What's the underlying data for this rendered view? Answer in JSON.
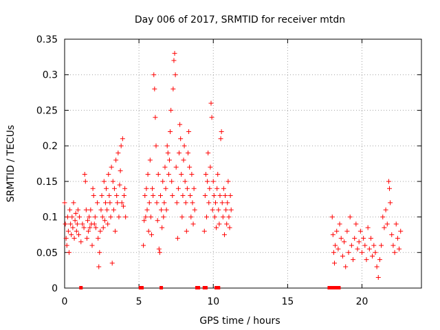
{
  "chart_data": {
    "type": "scatter",
    "title": "Day 006 of 2017, SRMTID for receiver mtdn",
    "xlabel": "GPS time / hours",
    "ylabel": "SRMTID / TECUs",
    "xlim": [
      0,
      24
    ],
    "ylim": [
      0,
      0.35
    ],
    "xticks": [
      0,
      5,
      10,
      15,
      20
    ],
    "xtick_labels": [
      "0",
      "5",
      "10",
      "15",
      "20"
    ],
    "yticks": [
      0,
      0.05,
      0.1,
      0.15,
      0.2,
      0.25,
      0.3,
      0.35
    ],
    "ytick_labels": [
      "0",
      "0.05",
      "0.1",
      "0.15",
      "0.2",
      "0.25",
      "0.3",
      "0.35"
    ],
    "grid": true,
    "marker": "+",
    "series_color": "#ff0000",
    "series": [
      {
        "name": "SRMTID",
        "points": [
          [
            0.0,
            0.12
          ],
          [
            0.05,
            0.09
          ],
          [
            0.1,
            0.07
          ],
          [
            0.15,
            0.06
          ],
          [
            0.2,
            0.1
          ],
          [
            0.25,
            0.08
          ],
          [
            0.3,
            0.05
          ],
          [
            0.35,
            0.11
          ],
          [
            0.4,
            0.09
          ],
          [
            0.45,
            0.075
          ],
          [
            0.5,
            0.1
          ],
          [
            0.55,
            0.085
          ],
          [
            0.6,
            0.12
          ],
          [
            0.65,
            0.07
          ],
          [
            0.7,
            0.095
          ],
          [
            0.75,
            0.105
          ],
          [
            0.8,
            0.08
          ],
          [
            0.85,
            0.09
          ],
          [
            0.9,
            0.11
          ],
          [
            0.95,
            0.075
          ],
          [
            1.0,
            0.1
          ],
          [
            1.1,
            0.065
          ],
          [
            1.2,
            0.09
          ],
          [
            1.3,
            0.085
          ],
          [
            1.35,
            0.16
          ],
          [
            1.4,
            0.15
          ],
          [
            1.45,
            0.11
          ],
          [
            1.5,
            0.07
          ],
          [
            1.55,
            0.095
          ],
          [
            1.6,
            0.08
          ],
          [
            1.65,
            0.1
          ],
          [
            1.7,
            0.085
          ],
          [
            1.75,
            0.11
          ],
          [
            1.8,
            0.09
          ],
          [
            1.85,
            0.06
          ],
          [
            1.9,
            0.14
          ],
          [
            1.95,
            0.13
          ],
          [
            2.0,
            0.09
          ],
          [
            2.05,
            0.1
          ],
          [
            2.1,
            0.085
          ],
          [
            2.2,
            0.12
          ],
          [
            2.25,
            0.07
          ],
          [
            2.3,
            0.03
          ],
          [
            2.35,
            0.05
          ],
          [
            2.4,
            0.08
          ],
          [
            2.45,
            0.11
          ],
          [
            2.5,
            0.13
          ],
          [
            2.55,
            0.1
          ],
          [
            2.6,
            0.085
          ],
          [
            2.65,
            0.15
          ],
          [
            2.7,
            0.095
          ],
          [
            2.75,
            0.12
          ],
          [
            2.8,
            0.14
          ],
          [
            2.85,
            0.11
          ],
          [
            2.9,
            0.09
          ],
          [
            2.95,
            0.16
          ],
          [
            3.0,
            0.13
          ],
          [
            3.05,
            0.12
          ],
          [
            3.1,
            0.1
          ],
          [
            3.15,
            0.17
          ],
          [
            3.2,
            0.035
          ],
          [
            3.25,
            0.15
          ],
          [
            3.3,
            0.11
          ],
          [
            3.35,
            0.14
          ],
          [
            3.4,
            0.08
          ],
          [
            3.45,
            0.18
          ],
          [
            3.5,
            0.13
          ],
          [
            3.55,
            0.12
          ],
          [
            3.6,
            0.19
          ],
          [
            3.65,
            0.1
          ],
          [
            3.7,
            0.145
          ],
          [
            3.75,
            0.165
          ],
          [
            3.8,
            0.2
          ],
          [
            3.85,
            0.12
          ],
          [
            3.9,
            0.21
          ],
          [
            3.95,
            0.115
          ],
          [
            4.0,
            0.13
          ],
          [
            4.05,
            0.14
          ],
          [
            4.1,
            0.1
          ],
          [
            5.3,
            0.06
          ],
          [
            5.35,
            0.095
          ],
          [
            5.4,
            0.13
          ],
          [
            5.45,
            0.1
          ],
          [
            5.5,
            0.14
          ],
          [
            5.55,
            0.11
          ],
          [
            5.6,
            0.16
          ],
          [
            5.65,
            0.08
          ],
          [
            5.7,
            0.12
          ],
          [
            5.75,
            0.18
          ],
          [
            5.8,
            0.1
          ],
          [
            5.85,
            0.075
          ],
          [
            5.9,
            0.14
          ],
          [
            5.95,
            0.13
          ],
          [
            6.0,
            0.3
          ],
          [
            6.05,
            0.28
          ],
          [
            6.1,
            0.24
          ],
          [
            6.15,
            0.2
          ],
          [
            6.2,
            0.12
          ],
          [
            6.25,
            0.095
          ],
          [
            6.3,
            0.16
          ],
          [
            6.35,
            0.055
          ],
          [
            6.4,
            0.05
          ],
          [
            6.45,
            0.13
          ],
          [
            6.5,
            0.11
          ],
          [
            6.55,
            0.085
          ],
          [
            6.6,
            0.15
          ],
          [
            6.65,
            0.1
          ],
          [
            6.7,
            0.12
          ],
          [
            6.75,
            0.17
          ],
          [
            6.8,
            0.14
          ],
          [
            6.85,
            0.11
          ],
          [
            6.9,
            0.2
          ],
          [
            6.95,
            0.19
          ],
          [
            7.0,
            0.16
          ],
          [
            7.05,
            0.18
          ],
          [
            7.1,
            0.22
          ],
          [
            7.15,
            0.25
          ],
          [
            7.2,
            0.15
          ],
          [
            7.25,
            0.13
          ],
          [
            7.3,
            0.28
          ],
          [
            7.35,
            0.32
          ],
          [
            7.4,
            0.33
          ],
          [
            7.45,
            0.3
          ],
          [
            7.5,
            0.17
          ],
          [
            7.55,
            0.12
          ],
          [
            7.6,
            0.07
          ],
          [
            7.65,
            0.14
          ],
          [
            7.7,
            0.19
          ],
          [
            7.75,
            0.23
          ],
          [
            7.8,
            0.21
          ],
          [
            7.85,
            0.16
          ],
          [
            7.9,
            0.1
          ],
          [
            7.95,
            0.13
          ],
          [
            8.0,
            0.18
          ],
          [
            8.05,
            0.2
          ],
          [
            8.1,
            0.15
          ],
          [
            8.15,
            0.12
          ],
          [
            8.2,
            0.08
          ],
          [
            8.25,
            0.14
          ],
          [
            8.3,
            0.19
          ],
          [
            8.35,
            0.22
          ],
          [
            8.4,
            0.17
          ],
          [
            8.45,
            0.13
          ],
          [
            8.5,
            0.1
          ],
          [
            8.55,
            0.16
          ],
          [
            8.6,
            0.12
          ],
          [
            8.65,
            0.09
          ],
          [
            8.7,
            0.14
          ],
          [
            8.75,
            0.11
          ],
          [
            9.4,
            0.08
          ],
          [
            9.45,
            0.13
          ],
          [
            9.5,
            0.16
          ],
          [
            9.55,
            0.1
          ],
          [
            9.6,
            0.15
          ],
          [
            9.65,
            0.19
          ],
          [
            9.7,
            0.12
          ],
          [
            9.75,
            0.14
          ],
          [
            9.8,
            0.17
          ],
          [
            9.85,
            0.26
          ],
          [
            9.9,
            0.24
          ],
          [
            9.95,
            0.11
          ],
          [
            10.0,
            0.15
          ],
          [
            10.05,
            0.13
          ],
          [
            10.1,
            0.1
          ],
          [
            10.15,
            0.12
          ],
          [
            10.2,
            0.085
          ],
          [
            10.25,
            0.14
          ],
          [
            10.3,
            0.16
          ],
          [
            10.35,
            0.11
          ],
          [
            10.4,
            0.09
          ],
          [
            10.45,
            0.13
          ],
          [
            10.5,
            0.21
          ],
          [
            10.55,
            0.22
          ],
          [
            10.6,
            0.12
          ],
          [
            10.65,
            0.1
          ],
          [
            10.7,
            0.14
          ],
          [
            10.75,
            0.075
          ],
          [
            10.8,
            0.13
          ],
          [
            10.85,
            0.11
          ],
          [
            10.9,
            0.09
          ],
          [
            10.95,
            0.12
          ],
          [
            11.0,
            0.15
          ],
          [
            11.05,
            0.1
          ],
          [
            11.1,
            0.085
          ],
          [
            11.15,
            0.13
          ],
          [
            11.2,
            0.11
          ],
          [
            18.0,
            0.1
          ],
          [
            18.05,
            0.075
          ],
          [
            18.1,
            0.05
          ],
          [
            18.15,
            0.035
          ],
          [
            18.2,
            0.06
          ],
          [
            18.3,
            0.08
          ],
          [
            18.4,
            0.055
          ],
          [
            18.5,
            0.09
          ],
          [
            18.6,
            0.07
          ],
          [
            18.7,
            0.045
          ],
          [
            18.8,
            0.065
          ],
          [
            18.9,
            0.03
          ],
          [
            19.0,
            0.08
          ],
          [
            19.1,
            0.05
          ],
          [
            19.2,
            0.1
          ],
          [
            19.3,
            0.06
          ],
          [
            19.4,
            0.04
          ],
          [
            19.5,
            0.07
          ],
          [
            19.6,
            0.09
          ],
          [
            19.7,
            0.055
          ],
          [
            19.8,
            0.065
          ],
          [
            19.9,
            0.08
          ],
          [
            20.0,
            0.05
          ],
          [
            20.1,
            0.07
          ],
          [
            20.2,
            0.06
          ],
          [
            20.3,
            0.04
          ],
          [
            20.4,
            0.085
          ],
          [
            20.5,
            0.055
          ],
          [
            20.6,
            0.07
          ],
          [
            20.7,
            0.045
          ],
          [
            20.8,
            0.06
          ],
          [
            20.9,
            0.05
          ],
          [
            21.0,
            0.03
          ],
          [
            21.1,
            0.015
          ],
          [
            21.2,
            0.04
          ],
          [
            21.3,
            0.06
          ],
          [
            21.4,
            0.1
          ],
          [
            21.5,
            0.085
          ],
          [
            21.6,
            0.11
          ],
          [
            21.7,
            0.09
          ],
          [
            21.8,
            0.15
          ],
          [
            21.85,
            0.14
          ],
          [
            21.9,
            0.12
          ],
          [
            22.0,
            0.075
          ],
          [
            22.1,
            0.06
          ],
          [
            22.2,
            0.05
          ],
          [
            22.3,
            0.09
          ],
          [
            22.4,
            0.07
          ],
          [
            22.5,
            0.055
          ],
          [
            22.6,
            0.08
          ]
        ]
      }
    ],
    "gap_markers_x": [
      1.1,
      5.1,
      5.2,
      6.5,
      8.9,
      9.0,
      9.4,
      9.5,
      10.2,
      10.35,
      17.8,
      18.0,
      18.1,
      18.3,
      18.45
    ]
  }
}
